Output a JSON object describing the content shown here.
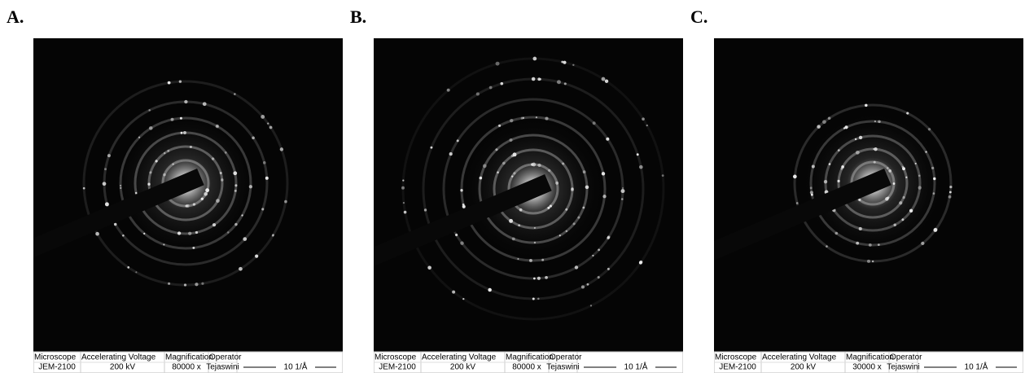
{
  "panels": [
    {
      "label": "A.",
      "headers": [
        "Microscope",
        "Accelerating Voltage",
        "Magnification",
        "Operator"
      ],
      "values": [
        "JEM-2100",
        "200 kV",
        "80000 x",
        "Tejaswini"
      ],
      "scale": "10 1/Å"
    },
    {
      "label": "B.",
      "headers": [
        "Microscope",
        "Accelerating Voltage",
        "Magnification",
        "Operator"
      ],
      "values": [
        "JEM-2100",
        "200 kV",
        "80000 x",
        "Tejaswini"
      ],
      "scale": "10 1/Å"
    },
    {
      "label": "C.",
      "headers": [
        "Microscope",
        "Accelerating Voltage",
        "Magnification",
        "Operator"
      ],
      "values": [
        "JEM-2100",
        "200 kV",
        "30000 x",
        "Tejaswini"
      ],
      "scale": "10 1/Å"
    }
  ]
}
